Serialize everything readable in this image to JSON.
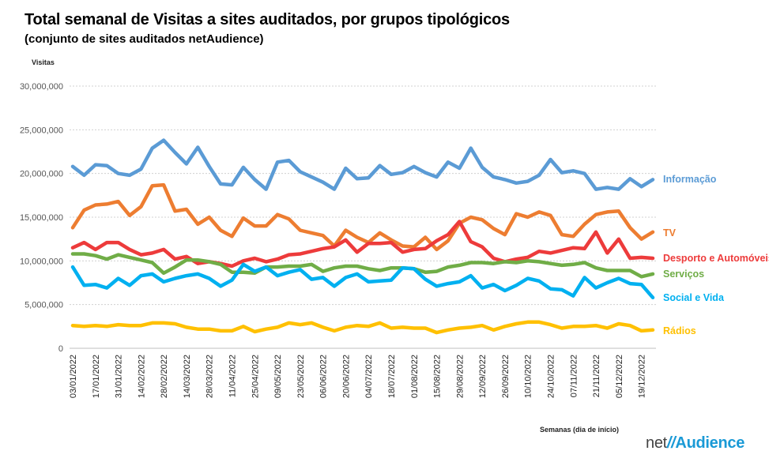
{
  "title": "Total semanal de Visitas a sites auditados, por grupos tipológicos",
  "subtitle": "(conjunto de sites auditados netAudience)",
  "logo": {
    "net": "net",
    "slashes": "//",
    "brand": "Audience"
  },
  "chart_data": {
    "type": "line",
    "ylabel": "Visitas",
    "xlabel": "Semanas  (dia de início)",
    "ylim": [
      0,
      30000000
    ],
    "yticks": [
      0,
      5000000,
      10000000,
      15000000,
      20000000,
      25000000,
      30000000
    ],
    "ytick_labels": [
      "0",
      "5,000,000",
      "10,000,000",
      "15,000,000",
      "20,000,000",
      "25,000,000",
      "30,000,000"
    ],
    "grid": true,
    "legend": "right, labels at line ends",
    "x": [
      "03/01/2022",
      "10/01/2022",
      "17/01/2022",
      "24/01/2022",
      "31/01/2022",
      "07/02/2022",
      "14/02/2022",
      "21/02/2022",
      "28/02/2022",
      "07/03/2022",
      "14/03/2022",
      "21/03/2022",
      "28/03/2022",
      "04/04/2022",
      "11/04/2022",
      "18/04/2022",
      "25/04/2022",
      "02/05/2022",
      "09/05/2022",
      "16/05/2022",
      "23/05/2022",
      "30/05/2022",
      "06/06/2022",
      "13/06/2022",
      "20/06/2022",
      "27/06/2022",
      "04/07/2022",
      "11/07/2022",
      "18/07/2022",
      "25/07/2022",
      "01/08/2022",
      "08/08/2022",
      "15/08/2022",
      "22/08/2022",
      "29/08/2022",
      "05/09/2022",
      "12/09/2022",
      "19/09/2022",
      "26/09/2022",
      "03/10/2022",
      "10/10/2022",
      "17/10/2022",
      "24/10/2022",
      "31/10/2022",
      "07/11/2022",
      "14/11/2022",
      "21/11/2022",
      "28/11/2022",
      "05/12/2022",
      "12/12/2022",
      "19/12/2022",
      "26/12/2022"
    ],
    "x_tick_labels": [
      "03/01/2022",
      "17/01/2022",
      "31/01/2022",
      "14/02/2022",
      "28/02/2022",
      "14/03/2022",
      "28/03/2022",
      "11/04/2022",
      "25/04/2022",
      "09/05/2022",
      "23/05/2022",
      "06/06/2022",
      "20/06/2022",
      "04/07/2022",
      "18/07/2022",
      "01/08/2022",
      "15/08/2022",
      "29/08/2022",
      "12/09/2022",
      "26/09/2022",
      "10/10/2022",
      "24/10/2022",
      "07/11/2022",
      "21/11/2022",
      "05/12/2022",
      "19/12/2022"
    ],
    "series": [
      {
        "name": "Informação",
        "color": "#5b9bd5",
        "values": [
          20800000,
          19800000,
          21000000,
          20900000,
          20000000,
          19800000,
          20500000,
          22900000,
          23800000,
          22400000,
          21100000,
          23000000,
          20800000,
          18800000,
          18700000,
          20700000,
          19300000,
          18200000,
          21300000,
          21500000,
          20200000,
          19600000,
          19000000,
          18200000,
          20600000,
          19400000,
          19500000,
          20900000,
          19900000,
          20100000,
          20800000,
          20100000,
          19600000,
          21300000,
          20600000,
          22900000,
          20700000,
          19600000,
          19300000,
          18900000,
          19100000,
          19800000,
          21600000,
          20100000,
          20300000,
          20000000,
          18200000,
          18400000,
          18200000,
          19400000,
          18500000,
          19300000
        ]
      },
      {
        "name": "TV",
        "color": "#ed7d31",
        "values": [
          13800000,
          15800000,
          16400000,
          16500000,
          16800000,
          15200000,
          16200000,
          18600000,
          18700000,
          15700000,
          15900000,
          14200000,
          15000000,
          13500000,
          12800000,
          14900000,
          14000000,
          14000000,
          15300000,
          14800000,
          13500000,
          13200000,
          12900000,
          11700000,
          13500000,
          12700000,
          12100000,
          13200000,
          12400000,
          11700000,
          11600000,
          12700000,
          11300000,
          12300000,
          14300000,
          15000000,
          14700000,
          13700000,
          13000000,
          15400000,
          15000000,
          15600000,
          15200000,
          13000000,
          12800000,
          14200000,
          15300000,
          15600000,
          15700000,
          13800000,
          12500000,
          13300000
        ]
      },
      {
        "name": "Desporto e Automóveis",
        "color": "#ed3b3b",
        "values": [
          11500000,
          12100000,
          11300000,
          12100000,
          12100000,
          11300000,
          10700000,
          10900000,
          11300000,
          10200000,
          10500000,
          9700000,
          9900000,
          9700000,
          9400000,
          10000000,
          10300000,
          9900000,
          10200000,
          10700000,
          10800000,
          11100000,
          11400000,
          11600000,
          12400000,
          11000000,
          12000000,
          12000000,
          12100000,
          11000000,
          11300000,
          11400000,
          12300000,
          13000000,
          14500000,
          12200000,
          11600000,
          10300000,
          9900000,
          10200000,
          10400000,
          11100000,
          10900000,
          11200000,
          11500000,
          11400000,
          13300000,
          10900000,
          12500000,
          10300000,
          10400000,
          10300000
        ]
      },
      {
        "name": "Serviços",
        "color": "#70ad47",
        "values": [
          10800000,
          10800000,
          10600000,
          10200000,
          10700000,
          10400000,
          10100000,
          9800000,
          8600000,
          9300000,
          10100000,
          10100000,
          9900000,
          9600000,
          8700000,
          8700000,
          8600000,
          9300000,
          9300000,
          9400000,
          9400000,
          9600000,
          8800000,
          9200000,
          9400000,
          9400000,
          9100000,
          8900000,
          9200000,
          9200000,
          9100000,
          8700000,
          8800000,
          9300000,
          9500000,
          9800000,
          9800000,
          9700000,
          9900000,
          9800000,
          10000000,
          9900000,
          9700000,
          9500000,
          9600000,
          9800000,
          9200000,
          8900000,
          8900000,
          8900000,
          8200000,
          8500000
        ]
      },
      {
        "name": "Social e Vida",
        "color": "#00b0f0",
        "values": [
          9300000,
          7200000,
          7300000,
          6900000,
          8000000,
          7200000,
          8300000,
          8500000,
          7600000,
          8000000,
          8300000,
          8500000,
          8000000,
          7100000,
          7800000,
          9600000,
          8800000,
          9300000,
          8300000,
          8700000,
          9000000,
          7900000,
          8100000,
          7100000,
          8100000,
          8500000,
          7600000,
          7700000,
          7800000,
          9200000,
          9100000,
          7900000,
          7100000,
          7400000,
          7600000,
          8300000,
          6900000,
          7300000,
          6600000,
          7200000,
          8000000,
          7700000,
          6800000,
          6700000,
          6000000,
          8100000,
          6900000,
          7500000,
          8000000,
          7400000,
          7300000,
          5800000
        ]
      },
      {
        "name": "Rádios",
        "color": "#ffc000",
        "values": [
          2600000,
          2500000,
          2600000,
          2500000,
          2700000,
          2600000,
          2600000,
          2900000,
          2900000,
          2800000,
          2400000,
          2200000,
          2200000,
          2000000,
          2000000,
          2500000,
          1900000,
          2200000,
          2400000,
          2900000,
          2700000,
          2900000,
          2400000,
          2000000,
          2400000,
          2600000,
          2500000,
          2900000,
          2300000,
          2400000,
          2300000,
          2300000,
          1800000,
          2100000,
          2300000,
          2400000,
          2600000,
          2100000,
          2500000,
          2800000,
          3000000,
          3000000,
          2700000,
          2300000,
          2500000,
          2500000,
          2600000,
          2300000,
          2800000,
          2600000,
          2000000,
          2100000
        ]
      }
    ]
  }
}
